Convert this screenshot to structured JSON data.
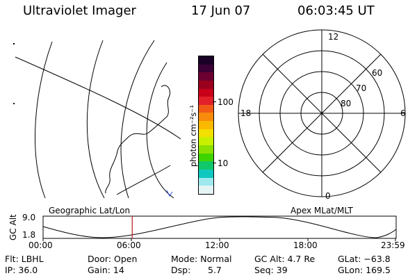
{
  "header": {
    "title": "Ultraviolet Imager",
    "date": "17 Jun 07",
    "time": "06:03:45 UT"
  },
  "colorbar": {
    "unit_label": "photon cm⁻²s⁻¹",
    "ticks": [
      "100",
      "10"
    ],
    "colors": [
      "#1a0026",
      "#3b0036",
      "#6b0030",
      "#9a001e",
      "#c8001a",
      "#e2202a",
      "#f05a16",
      "#f88a0c",
      "#fbb800",
      "#f2e000",
      "#c8f000",
      "#8ae000",
      "#3ed400",
      "#10c86a",
      "#10c8c0",
      "#9ee8ee",
      "#e4f4f4"
    ]
  },
  "polar": {
    "mlt_labels": [
      "12",
      "18",
      "6",
      "0"
    ],
    "lat_labels": [
      "60",
      "70",
      "80"
    ]
  },
  "timeline": {
    "left_title": "Geographic Lat/Lon",
    "right_title": "Apex MLat/MLT",
    "axis_label": "GC Alt",
    "y_max": "9.0",
    "y_min": "1.8",
    "x_ticks": [
      "00:00",
      "06:00",
      "12:00",
      "18:00",
      "23:59"
    ],
    "current_time_hours": 6.06
  },
  "info": {
    "row1": {
      "flt": "Flt: LBHL",
      "door": "Door: Open",
      "mode": "Mode: Normal",
      "gcalt": "GC Alt: 4.7 Re",
      "glat": "GLat: −63.8"
    },
    "row2": {
      "ip": "IP: 36.0",
      "gain": "Gain: 14",
      "dsp_label": "Dsp:",
      "dsp_value": "5.7",
      "seq": "Seq: 39",
      "glon": "GLon: 169.5"
    }
  }
}
